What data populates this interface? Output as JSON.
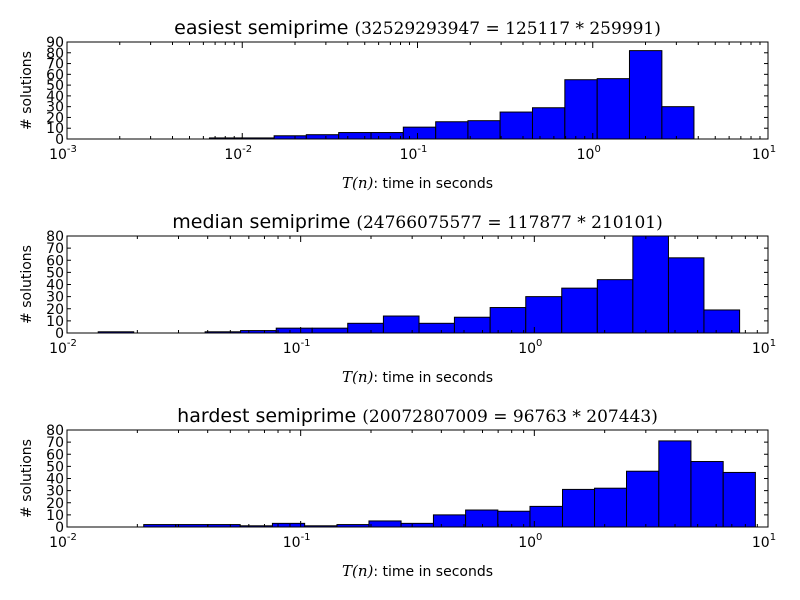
{
  "chart_data": [
    {
      "type": "histogram",
      "title_prefix": "easiest semiprime",
      "title_math": "(32529293947 = 125117 * 259991)",
      "ylabel": "# solutions",
      "xlabel_math": "T(n)",
      "xlabel_text": ": time in seconds",
      "xscale": "log",
      "xlim": [
        0.001,
        10
      ],
      "ylim": [
        0,
        90
      ],
      "yticks": [
        0,
        10,
        20,
        30,
        40,
        50,
        60,
        70,
        80,
        90
      ],
      "xticks": [
        {
          "base": "10",
          "exp": "-3"
        },
        {
          "base": "10",
          "exp": "-2"
        },
        {
          "base": "10",
          "exp": "-1"
        },
        {
          "base": "10",
          "exp": "0"
        },
        {
          "base": "10",
          "exp": "1"
        }
      ],
      "bin_edges": [
        0.0065,
        0.0099,
        0.0152,
        0.0232,
        0.0355,
        0.0543,
        0.083,
        0.127,
        0.194,
        0.296,
        0.453,
        0.693,
        1.06,
        1.62,
        2.48,
        3.78,
        5.79
      ],
      "counts": [
        1,
        1,
        3,
        4,
        6,
        6,
        11,
        16,
        17,
        25,
        29,
        55,
        56,
        82,
        30,
        0
      ]
    },
    {
      "type": "histogram",
      "title_prefix": "median semiprime",
      "title_math": "(24766075577 = 117877 * 210101)",
      "ylabel": "# solutions",
      "xlabel_math": "T(n)",
      "xlabel_text": ": time in seconds",
      "xscale": "log",
      "xlim": [
        0.01,
        10
      ],
      "ylim": [
        0,
        80
      ],
      "yticks": [
        0,
        10,
        20,
        30,
        40,
        50,
        60,
        70,
        80
      ],
      "xticks": [
        {
          "base": "10",
          "exp": "-2"
        },
        {
          "base": "10",
          "exp": "-1"
        },
        {
          "base": "10",
          "exp": "0"
        },
        {
          "base": "10",
          "exp": "1"
        }
      ],
      "bin_edges": [
        0.0136,
        0.0193,
        0.0274,
        0.039,
        0.0553,
        0.0786,
        0.112,
        0.159,
        0.226,
        0.321,
        0.455,
        0.647,
        0.919,
        1.31,
        1.86,
        2.64,
        3.75,
        5.32,
        7.56
      ],
      "counts": [
        1,
        0,
        0,
        1,
        2,
        4,
        4,
        8,
        14,
        8,
        13,
        21,
        30,
        37,
        44,
        80,
        62,
        19
      ]
    },
    {
      "type": "histogram",
      "title_prefix": "hardest semiprime",
      "title_math": "(20072807009 = 96763 * 207443)",
      "ylabel": "# solutions",
      "xlabel_math": "T(n)",
      "xlabel_text": ": time in seconds",
      "xscale": "log",
      "xlim": [
        0.01,
        10
      ],
      "ylim": [
        0,
        80
      ],
      "yticks": [
        0,
        10,
        20,
        30,
        40,
        50,
        60,
        70,
        80
      ],
      "xticks": [
        {
          "base": "10",
          "exp": "-2"
        },
        {
          "base": "10",
          "exp": "-1"
        },
        {
          "base": "10",
          "exp": "0"
        },
        {
          "base": "10",
          "exp": "1"
        }
      ],
      "bin_edges": [
        0.0213,
        0.0292,
        0.0401,
        0.0551,
        0.0757,
        0.104,
        0.143,
        0.196,
        0.269,
        0.37,
        0.508,
        0.698,
        0.958,
        1.32,
        1.81,
        2.48,
        3.41,
        4.68,
        6.43,
        8.83
      ],
      "counts": [
        2,
        2,
        2,
        1,
        3,
        1,
        2,
        5,
        3,
        10,
        14,
        13,
        17,
        31,
        32,
        46,
        71,
        54,
        45
      ]
    }
  ]
}
